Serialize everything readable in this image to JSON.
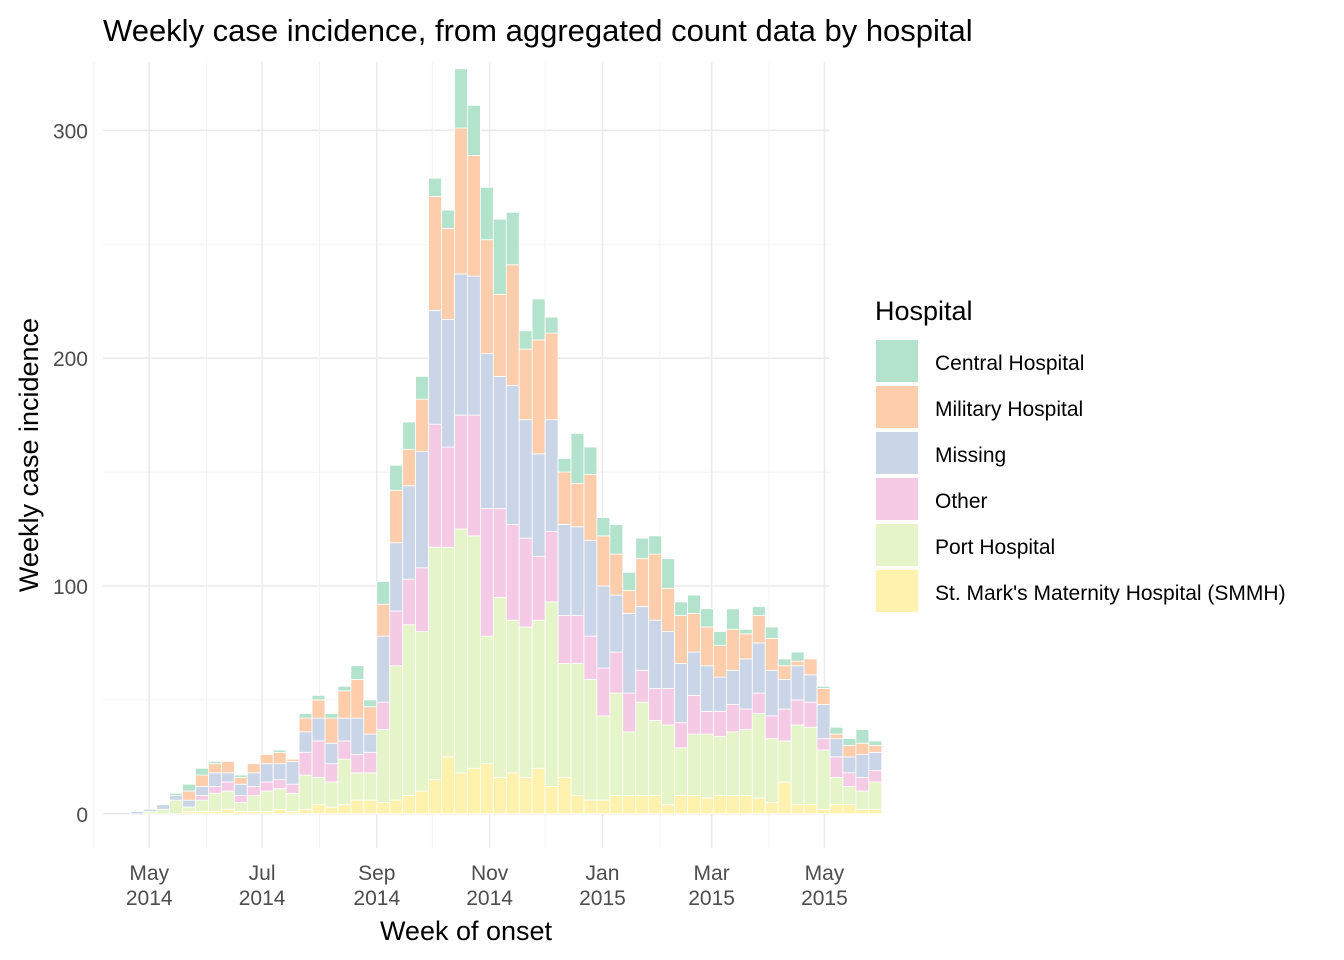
{
  "chart_data": {
    "type": "bar",
    "stacked": true,
    "title": "Weekly case incidence, from aggregated count data by hospital",
    "xlabel": "Week of onset",
    "ylabel": "Weekly case incidence",
    "ylim": [
      -15,
      330
    ],
    "yticks": [
      0,
      100,
      200,
      300
    ],
    "xaxis": {
      "start": "2014-04-06",
      "end": "2015-05-04",
      "ticks": [
        {
          "date": "2014-05-01",
          "label1": "May",
          "label2": "2014"
        },
        {
          "date": "2014-07-01",
          "label1": "Jul",
          "label2": "2014"
        },
        {
          "date": "2014-09-01",
          "label1": "Sep",
          "label2": "2014"
        },
        {
          "date": "2014-11-01",
          "label1": "Nov",
          "label2": "2014"
        },
        {
          "date": "2015-01-01",
          "label1": "Jan",
          "label2": "2015"
        },
        {
          "date": "2015-03-01",
          "label1": "Mar",
          "label2": "2015"
        },
        {
          "date": "2015-05-01",
          "label1": "May",
          "label2": "2015"
        }
      ],
      "minor_ticks": [
        "2014-04-01",
        "2014-06-01",
        "2014-08-01",
        "2014-10-01",
        "2014-12-01",
        "2015-02-01",
        "2015-04-01"
      ]
    },
    "first_week": "2014-04-14",
    "week_days": 7,
    "legend": {
      "title": "Hospital",
      "position": "right",
      "entries": [
        "Central Hospital",
        "Military Hospital",
        "Missing",
        "Other",
        "Port Hospital",
        "St. Mark's Maternity Hospital (SMMH)"
      ]
    },
    "colors": {
      "Central Hospital": "#B3E2CD",
      "Military Hospital": "#FDCDAC",
      "Missing": "#CBD5E8",
      "Other": "#F4CAE4",
      "Port Hospital": "#E6F5C9",
      "St. Mark's Maternity Hospital (SMMH)": "#FFF2AE"
    },
    "stack_order": [
      "St. Mark's Maternity Hospital (SMMH)",
      "Port Hospital",
      "Other",
      "Missing",
      "Military Hospital",
      "Central Hospital"
    ],
    "series": [
      {
        "name": "St. Mark's Maternity Hospital (SMMH)",
        "values": [
          0,
          0,
          0,
          0,
          0,
          1,
          1,
          1,
          2,
          1,
          1,
          1,
          2,
          1,
          2,
          4,
          3,
          4,
          6,
          6,
          5,
          6,
          8,
          10,
          15,
          25,
          18,
          20,
          22,
          16,
          18,
          16,
          20,
          12,
          16,
          8,
          6,
          6,
          8,
          8,
          8,
          8,
          4,
          8,
          8,
          7,
          8,
          8,
          8,
          7,
          5,
          14,
          4,
          4,
          2,
          4,
          4,
          2,
          2
        ]
      },
      {
        "name": "Port Hospital",
        "values": [
          0,
          0,
          1,
          2,
          6,
          2,
          5,
          8,
          8,
          4,
          7,
          9,
          9,
          8,
          15,
          12,
          11,
          20,
          12,
          12,
          32,
          59,
          75,
          70,
          102,
          92,
          107,
          102,
          56,
          79,
          67,
          66,
          65,
          81,
          50,
          58,
          53,
          37,
          45,
          28,
          41,
          33,
          35,
          21,
          27,
          28,
          26,
          28,
          29,
          37,
          28,
          18,
          35,
          34,
          26,
          12,
          8,
          8,
          12
        ]
      },
      {
        "name": "Other",
        "values": [
          0,
          0,
          0,
          0,
          0,
          0,
          2,
          3,
          4,
          3,
          4,
          4,
          4,
          4,
          10,
          16,
          8,
          8,
          8,
          9,
          12,
          24,
          20,
          28,
          54,
          44,
          50,
          53,
          56,
          39,
          42,
          39,
          28,
          31,
          21,
          21,
          19,
          21,
          18,
          17,
          14,
          14,
          16,
          11,
          17,
          10,
          11,
          12,
          9,
          9,
          10,
          14,
          11,
          11,
          5,
          9,
          6,
          6,
          5
        ]
      },
      {
        "name": "Missing",
        "values": [
          0,
          1,
          1,
          2,
          2,
          3,
          4,
          6,
          4,
          5,
          6,
          8,
          7,
          10,
          9,
          10,
          9,
          10,
          16,
          8,
          29,
          30,
          41,
          51,
          50,
          56,
          62,
          61,
          68,
          58,
          61,
          52,
          45,
          49,
          40,
          39,
          42,
          36,
          25,
          35,
          28,
          30,
          25,
          26,
          19,
          20,
          15,
          15,
          22,
          22,
          20,
          13,
          15,
          12,
          15,
          8,
          7,
          10,
          8
        ]
      },
      {
        "name": "Military Hospital",
        "values": [
          0,
          0,
          0,
          0,
          0,
          4,
          5,
          4,
          5,
          3,
          4,
          4,
          5,
          1,
          6,
          8,
          11,
          12,
          17,
          12,
          14,
          23,
          16,
          23,
          50,
          40,
          64,
          53,
          50,
          36,
          53,
          31,
          50,
          38,
          23,
          19,
          29,
          22,
          18,
          10,
          21,
          29,
          19,
          21,
          17,
          17,
          14,
          18,
          11,
          12,
          14,
          6,
          2,
          7,
          7,
          2,
          5,
          5,
          3
        ]
      },
      {
        "name": "Central Hospital",
        "values": [
          0,
          0,
          0,
          0,
          1,
          3,
          3,
          1,
          0,
          1,
          0,
          0,
          1,
          0,
          2,
          2,
          2,
          2,
          6,
          3,
          10,
          11,
          12,
          10,
          8,
          8,
          26,
          22,
          23,
          33,
          23,
          8,
          18,
          7,
          6,
          22,
          12,
          8,
          13,
          8,
          9,
          8,
          13,
          6,
          8,
          8,
          6,
          9,
          2,
          4,
          5,
          3,
          4,
          0,
          1,
          3,
          3,
          6,
          2
        ]
      }
    ]
  }
}
